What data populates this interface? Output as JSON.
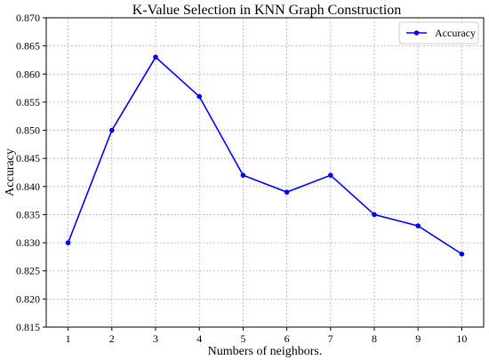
{
  "chart_data": {
    "type": "line",
    "title": "K-Value Selection in KNN Graph Construction",
    "xlabel": "Numbers of neighbors.",
    "ylabel": "Accuracy",
    "x": [
      1,
      2,
      3,
      4,
      5,
      6,
      7,
      8,
      9,
      10
    ],
    "series": [
      {
        "name": "Accuracy",
        "values": [
          0.83,
          0.85,
          0.863,
          0.856,
          0.842,
          0.839,
          0.842,
          0.835,
          0.833,
          0.828
        ]
      }
    ],
    "xlim": [
      0.5,
      10.5
    ],
    "ylim": [
      0.815,
      0.87
    ],
    "x_ticks": [
      "1",
      "2",
      "3",
      "4",
      "5",
      "6",
      "7",
      "8",
      "9",
      "10"
    ],
    "y_ticks": [
      "0.815",
      "0.820",
      "0.825",
      "0.830",
      "0.835",
      "0.840",
      "0.845",
      "0.850",
      "0.855",
      "0.860",
      "0.865",
      "0.870"
    ],
    "grid": true,
    "legend_position": "top-right",
    "colors": {
      "line": "#0000ff"
    }
  }
}
